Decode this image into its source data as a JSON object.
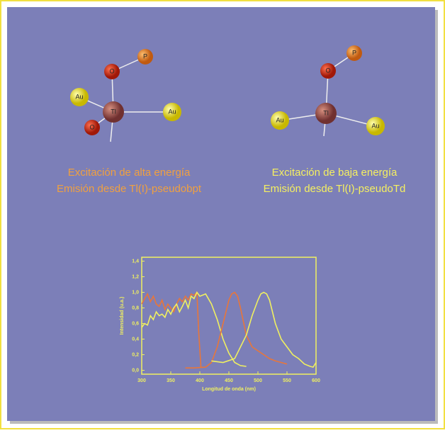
{
  "molecules": [
    {
      "atoms": [
        {
          "label": "P"
        },
        {
          "label": "O"
        },
        {
          "label": "Au"
        },
        {
          "label": "Tl"
        },
        {
          "label": "Au"
        },
        {
          "label": "O"
        }
      ],
      "caption": [
        "Excitación de alta energía",
        "Emisión desde Tl(I)-pseudobpt"
      ]
    },
    {
      "atoms": [
        {
          "label": "P"
        },
        {
          "label": "O"
        },
        {
          "label": "Tl"
        },
        {
          "label": "Au"
        },
        {
          "label": "Au"
        }
      ],
      "caption": [
        "Excitación de baja energía",
        "Emisión desde Tl(I)-pseudoTd"
      ]
    }
  ],
  "chart_data": {
    "type": "line",
    "x_label": "Longitud de onda (nm)",
    "y_label": "Intensidad (u.a.)",
    "xlim": [
      300,
      600
    ],
    "ylim": [
      -0.05,
      1.45
    ],
    "xticks": [
      300,
      350,
      400,
      450,
      500,
      550,
      600
    ],
    "yticks": [
      {
        "value": 0,
        "label": "0,0"
      },
      {
        "value": 0.2,
        "label": "0,2"
      },
      {
        "value": 0.4,
        "label": "0,4"
      },
      {
        "value": 0.6,
        "label": "0,6"
      },
      {
        "value": 0.8,
        "label": "0,8"
      },
      {
        "value": 1,
        "label": "1,0"
      },
      {
        "value": 1.2,
        "label": "1,2"
      },
      {
        "value": 1.4,
        "label": "1,4"
      }
    ],
    "series": [
      {
        "color": "#e8763a",
        "x": [
          300,
          305,
          310,
          315,
          320,
          325,
          330,
          335,
          340,
          345,
          350,
          355,
          360,
          365,
          370,
          375,
          380,
          385,
          390,
          395,
          398,
          402
        ],
        "values": [
          0.85,
          0.92,
          0.98,
          0.88,
          0.95,
          0.85,
          0.82,
          0.9,
          0.78,
          0.85,
          0.8,
          0.75,
          0.85,
          0.92,
          0.88,
          0.95,
          0.9,
          0.98,
          0.96,
          1.0,
          0.5,
          0.03
        ]
      },
      {
        "color": "#f0f060",
        "x": [
          300,
          305,
          310,
          315,
          320,
          325,
          330,
          335,
          340,
          345,
          350,
          355,
          360,
          365,
          370,
          375,
          380,
          385,
          390,
          395,
          400,
          410,
          420,
          430,
          440,
          450,
          460,
          470,
          480
        ],
        "values": [
          0.55,
          0.6,
          0.58,
          0.7,
          0.65,
          0.75,
          0.7,
          0.72,
          0.68,
          0.78,
          0.72,
          0.8,
          0.85,
          0.75,
          0.82,
          0.9,
          0.8,
          0.95,
          0.92,
          1.0,
          0.95,
          0.98,
          0.85,
          0.65,
          0.4,
          0.22,
          0.1,
          0.06,
          0.05
        ]
      },
      {
        "color": "#e8763a",
        "x": [
          375,
          390,
          410,
          420,
          430,
          440,
          450,
          455,
          460,
          465,
          470,
          480,
          490,
          500,
          510,
          520,
          530,
          540,
          550
        ],
        "values": [
          0.03,
          0.03,
          0.04,
          0.1,
          0.3,
          0.6,
          0.9,
          0.98,
          1.0,
          0.95,
          0.8,
          0.45,
          0.3,
          0.25,
          0.2,
          0.15,
          0.12,
          0.1,
          0.08
        ]
      },
      {
        "color": "#f0f060",
        "x": [
          420,
          440,
          460,
          480,
          490,
          500,
          505,
          510,
          515,
          520,
          530,
          540,
          550,
          560,
          570,
          580,
          590,
          595,
          600
        ],
        "values": [
          0.12,
          0.1,
          0.15,
          0.45,
          0.7,
          0.9,
          0.98,
          1.0,
          0.98,
          0.9,
          0.6,
          0.4,
          0.3,
          0.2,
          0.15,
          0.08,
          0.05,
          0.04,
          0.1
        ]
      }
    ]
  }
}
